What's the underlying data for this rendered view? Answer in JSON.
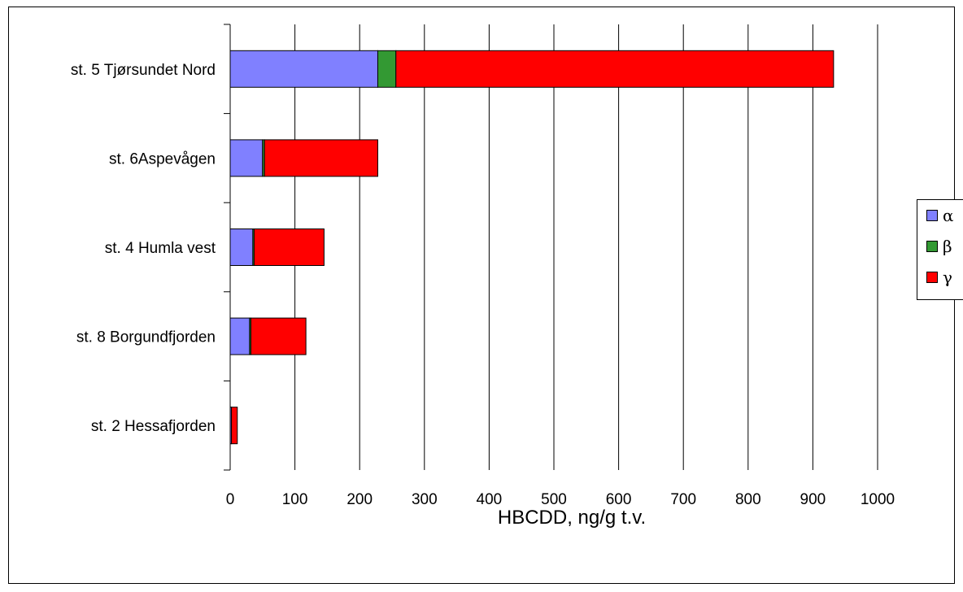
{
  "chart_data": {
    "type": "bar",
    "orientation": "horizontal",
    "stacked": true,
    "categories": [
      "st. 5 Tjørsundet Nord",
      "st. 6Aspevågen",
      "st. 4 Humla vest",
      "st. 8 Borgundfjorden",
      "st. 2 Hessafjorden"
    ],
    "series": [
      {
        "name": "α",
        "color": "#8080ff",
        "values": [
          228,
          50,
          35,
          30,
          2
        ]
      },
      {
        "name": "β",
        "color": "#339933",
        "values": [
          28,
          3,
          2,
          2,
          0
        ]
      },
      {
        "name": "γ",
        "color": "#ff0000",
        "values": [
          676,
          175,
          108,
          85,
          9
        ]
      }
    ],
    "xlabel": "HBCDD, ng/g t.v.",
    "xlim": [
      0,
      1000
    ],
    "xticks": [
      "0",
      "100",
      "200",
      "300",
      "400",
      "500",
      "600",
      "700",
      "800",
      "900",
      "1000"
    ],
    "grid": "vertical",
    "legend_position": "right"
  }
}
